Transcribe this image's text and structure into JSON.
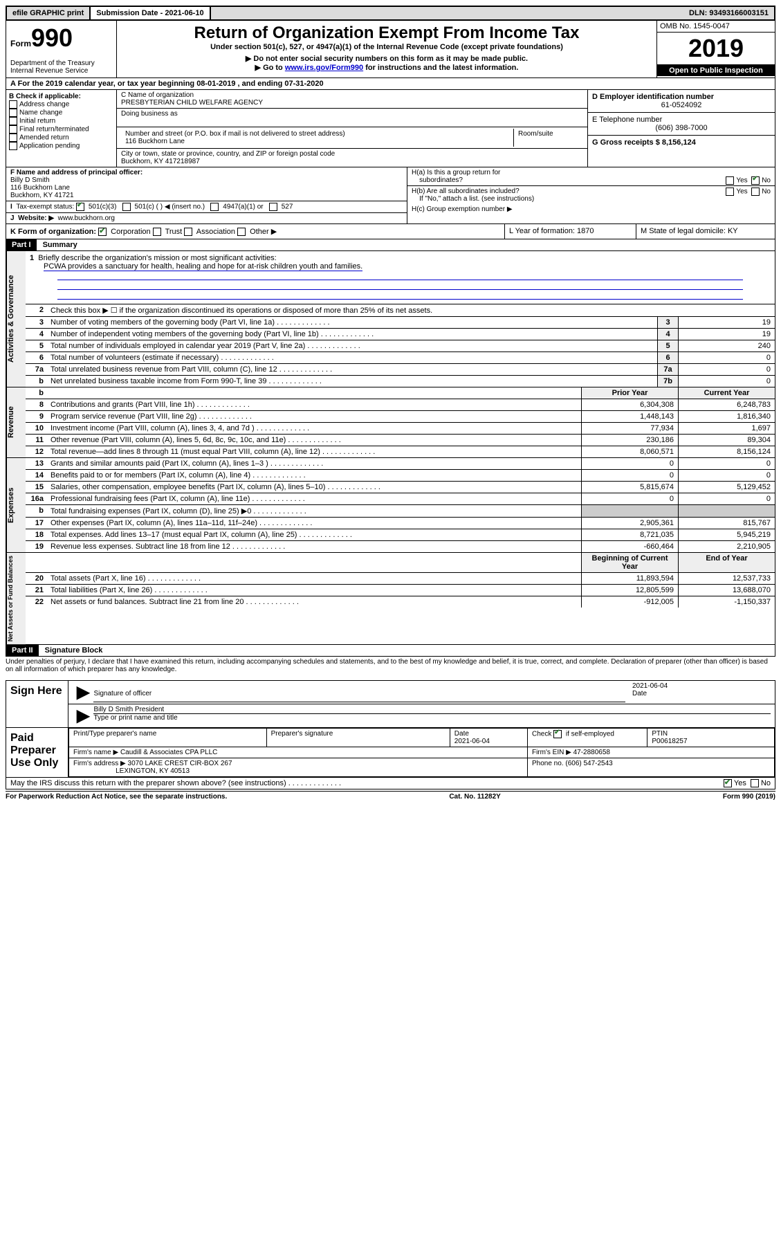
{
  "topbar": {
    "efile": "efile GRAPHIC print",
    "submission_label": "Submission Date - 2021-06-10",
    "dln": "DLN: 93493166003151"
  },
  "header": {
    "form_prefix": "Form",
    "form_number": "990",
    "dept": "Department of the Treasury\nInternal Revenue Service",
    "title": "Return of Organization Exempt From Income Tax",
    "subtitle": "Under section 501(c), 527, or 4947(a)(1) of the Internal Revenue Code (except private foundations)",
    "note1": "▶ Do not enter social security numbers on this form as it may be made public.",
    "note2_pre": "▶ Go to ",
    "note2_link": "www.irs.gov/Form990",
    "note2_post": " for instructions and the latest information.",
    "omb": "OMB No. 1545-0047",
    "year": "2019",
    "inspection": "Open to Public Inspection"
  },
  "row_a": "A For the 2019 calendar year, or tax year beginning 08-01-2019   , and ending 07-31-2020",
  "col_b": {
    "label": "B Check if applicable:",
    "items": [
      "Address change",
      "Name change",
      "Initial return",
      "Final return/terminated",
      "Amended return",
      "Application pending"
    ]
  },
  "col_c": {
    "name_label": "C Name of organization",
    "name": "PRESBYTERIAN CHILD WELFARE AGENCY",
    "dba_label": "Doing business as",
    "street_label": "Number and street (or P.O. box if mail is not delivered to street address)",
    "street": "116 Buckhorn Lane",
    "room_label": "Room/suite",
    "city_label": "City or town, state or province, country, and ZIP or foreign postal code",
    "city": "Buckhorn, KY  417218987"
  },
  "col_d": {
    "ein_label": "D Employer identification number",
    "ein": "61-0524092",
    "phone_label": "E Telephone number",
    "phone": "(606) 398-7000",
    "gross_label": "G Gross receipts $ 8,156,124"
  },
  "section_f": {
    "label": "F  Name and address of principal officer:",
    "name": "Billy D Smith",
    "street": "116 Buckhorn Lane",
    "city": "Buckhorn, KY  41721",
    "tax_exempt": "Tax-exempt status:",
    "c3": "501(c)(3)",
    "c_other": "501(c) (   ) ◀ (insert no.)",
    "a1": "4947(a)(1) or",
    "s527": "527",
    "website_label": "Website: ▶",
    "website": "www.buckhorn.org"
  },
  "section_h": {
    "ha": "H(a)  Is this a group return for",
    "ha2": "subordinates?",
    "hb": "H(b)  Are all subordinates included?",
    "hb_note": "If \"No,\" attach a list. (see instructions)",
    "hc": "H(c)  Group exemption number ▶",
    "yes": "Yes",
    "no": "No"
  },
  "row_k": {
    "label": "K Form of organization:",
    "corp": "Corporation",
    "trust": "Trust",
    "assoc": "Association",
    "other": "Other ▶",
    "l": "L Year of formation: 1870",
    "m": "M State of legal domicile: KY"
  },
  "part1": {
    "hdr": "Part I",
    "title": "Summary",
    "line1_label": "Briefly describe the organization's mission or most significant activities:",
    "line1_text": "PCWA provides a sanctuary for health, healing and hope for at-risk children youth and families.",
    "line2": "Check this box ▶ ☐  if the organization discontinued its operations or disposed of more than 25% of its net assets.",
    "gov_rows": [
      {
        "n": "3",
        "t": "Number of voting members of the governing body (Part VI, line 1a)",
        "c": "3",
        "v": "19"
      },
      {
        "n": "4",
        "t": "Number of independent voting members of the governing body (Part VI, line 1b)",
        "c": "4",
        "v": "19"
      },
      {
        "n": "5",
        "t": "Total number of individuals employed in calendar year 2019 (Part V, line 2a)",
        "c": "5",
        "v": "240"
      },
      {
        "n": "6",
        "t": "Total number of volunteers (estimate if necessary)",
        "c": "6",
        "v": "0"
      },
      {
        "n": "7a",
        "t": "Total unrelated business revenue from Part VIII, column (C), line 12",
        "c": "7a",
        "v": "0"
      },
      {
        "n": "b",
        "t": "Net unrelated business taxable income from Form 990-T, line 39",
        "c": "7b",
        "v": "0"
      }
    ],
    "col_prior": "Prior Year",
    "col_current": "Current Year",
    "rev_rows": [
      {
        "n": "8",
        "t": "Contributions and grants (Part VIII, line 1h)",
        "p": "6,304,308",
        "c": "6,248,783"
      },
      {
        "n": "9",
        "t": "Program service revenue (Part VIII, line 2g)",
        "p": "1,448,143",
        "c": "1,816,340"
      },
      {
        "n": "10",
        "t": "Investment income (Part VIII, column (A), lines 3, 4, and 7d )",
        "p": "77,934",
        "c": "1,697"
      },
      {
        "n": "11",
        "t": "Other revenue (Part VIII, column (A), lines 5, 6d, 8c, 9c, 10c, and 11e)",
        "p": "230,186",
        "c": "89,304"
      },
      {
        "n": "12",
        "t": "Total revenue—add lines 8 through 11 (must equal Part VIII, column (A), line 12)",
        "p": "8,060,571",
        "c": "8,156,124"
      }
    ],
    "exp_rows": [
      {
        "n": "13",
        "t": "Grants and similar amounts paid (Part IX, column (A), lines 1–3 )",
        "p": "0",
        "c": "0"
      },
      {
        "n": "14",
        "t": "Benefits paid to or for members (Part IX, column (A), line 4)",
        "p": "0",
        "c": "0"
      },
      {
        "n": "15",
        "t": "Salaries, other compensation, employee benefits (Part IX, column (A), lines 5–10)",
        "p": "5,815,674",
        "c": "5,129,452"
      },
      {
        "n": "16a",
        "t": "Professional fundraising fees (Part IX, column (A), line 11e)",
        "p": "0",
        "c": "0"
      },
      {
        "n": "b",
        "t": "Total fundraising expenses (Part IX, column (D), line 25) ▶0",
        "p": "",
        "c": "",
        "shade": true
      },
      {
        "n": "17",
        "t": "Other expenses (Part IX, column (A), lines 11a–11d, 11f–24e)",
        "p": "2,905,361",
        "c": "815,767"
      },
      {
        "n": "18",
        "t": "Total expenses. Add lines 13–17 (must equal Part IX, column (A), line 25)",
        "p": "8,721,035",
        "c": "5,945,219"
      },
      {
        "n": "19",
        "t": "Revenue less expenses. Subtract line 18 from line 12",
        "p": "-660,464",
        "c": "2,210,905"
      }
    ],
    "col_boy": "Beginning of Current Year",
    "col_eoy": "End of Year",
    "net_rows": [
      {
        "n": "20",
        "t": "Total assets (Part X, line 16)",
        "p": "11,893,594",
        "c": "12,537,733"
      },
      {
        "n": "21",
        "t": "Total liabilities (Part X, line 26)",
        "p": "12,805,599",
        "c": "13,688,070"
      },
      {
        "n": "22",
        "t": "Net assets or fund balances. Subtract line 21 from line 20",
        "p": "-912,005",
        "c": "-1,150,337"
      }
    ],
    "vtab_gov": "Activities & Governance",
    "vtab_rev": "Revenue",
    "vtab_exp": "Expenses",
    "vtab_net": "Net Assets or Fund Balances"
  },
  "part2": {
    "hdr": "Part II",
    "title": "Signature Block",
    "declaration": "Under penalties of perjury, I declare that I have examined this return, including accompanying schedules and statements, and to the best of my knowledge and belief, it is true, correct, and complete. Declaration of preparer (other than officer) is based on all information of which preparer has any knowledge."
  },
  "sign": {
    "label": "Sign Here",
    "sig_label": "Signature of officer",
    "date": "2021-06-04",
    "date_label": "Date",
    "name": "Billy D Smith  President",
    "name_label": "Type or print name and title"
  },
  "prep": {
    "label": "Paid Preparer Use Only",
    "h1": "Print/Type preparer's name",
    "h2": "Preparer's signature",
    "h3_label": "Date",
    "h3": "2021-06-04",
    "h4_label": "Check ☑ if self-employed",
    "h5_label": "PTIN",
    "h5": "P00618257",
    "firm_name_label": "Firm's name    ▶",
    "firm_name": "Caudill & Associates CPA PLLC",
    "firm_ein_label": "Firm's EIN ▶",
    "firm_ein": "47-2880658",
    "firm_addr_label": "Firm's address ▶",
    "firm_addr1": "3070 LAKE CREST CIR-BOX 267",
    "firm_addr2": "LEXINGTON, KY  40513",
    "phone_label": "Phone no.",
    "phone": "(606) 547-2543"
  },
  "discuss": "May the IRS discuss this return with the preparer shown above? (see instructions)",
  "footer": {
    "left": "For Paperwork Reduction Act Notice, see the separate instructions.",
    "mid": "Cat. No. 11282Y",
    "right": "Form 990 (2019)"
  }
}
